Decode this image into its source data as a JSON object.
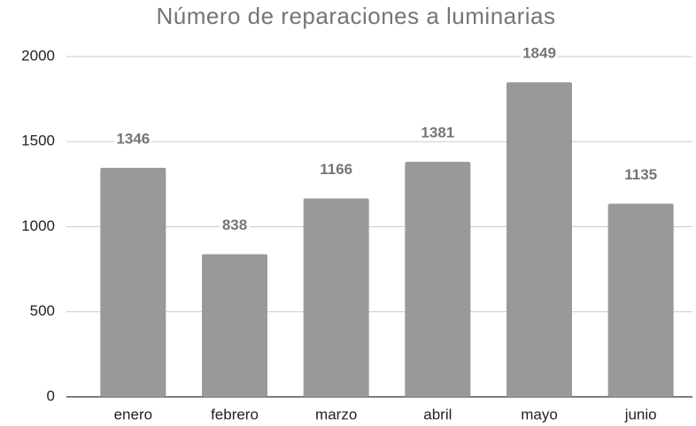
{
  "chart_data": {
    "type": "bar",
    "title": "Número de reparaciones a luminarias",
    "categories": [
      "enero",
      "febrero",
      "marzo",
      "abril",
      "mayo",
      "junio"
    ],
    "values": [
      1346,
      838,
      1166,
      1381,
      1849,
      1135
    ],
    "color": "#999999",
    "ylim": [
      0,
      2000
    ],
    "yticks": [
      0,
      500,
      1000,
      1500,
      2000
    ],
    "grid": true
  }
}
